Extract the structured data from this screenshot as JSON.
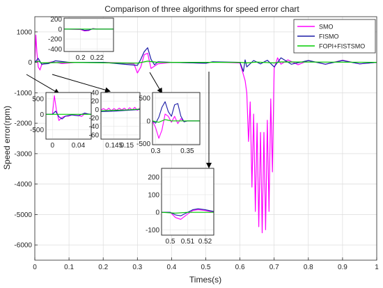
{
  "chart_data": {
    "type": "line",
    "title": "Comparison of three algorithms for speed error chart",
    "xlabel": "Times(s)",
    "ylabel": "Speed error(rpm)",
    "xlim": [
      0,
      1
    ],
    "ylim": [
      -6500,
      1500
    ],
    "xticks": [
      "0",
      "0.1",
      "0.2",
      "0.3",
      "0.4",
      "0.5",
      "0.6",
      "0.7",
      "0.8",
      "0.9",
      "1"
    ],
    "yticks": [
      "1000",
      "0",
      "-1000",
      "-2000",
      "-3000",
      "-4000",
      "-5000",
      "-6000"
    ],
    "grid": true,
    "legend_position": "top-right",
    "series": [
      {
        "name": "SMO",
        "color": "#ff00ff",
        "points": [
          [
            0,
            0
          ],
          [
            0.003,
            900
          ],
          [
            0.006,
            350
          ],
          [
            0.01,
            -150
          ],
          [
            0.015,
            -250
          ],
          [
            0.02,
            -80
          ],
          [
            0.03,
            -30
          ],
          [
            0.05,
            20
          ],
          [
            0.08,
            -40
          ],
          [
            0.12,
            0
          ],
          [
            0.2,
            0
          ],
          [
            0.25,
            -20
          ],
          [
            0.29,
            -50
          ],
          [
            0.3,
            -350
          ],
          [
            0.31,
            -150
          ],
          [
            0.32,
            250
          ],
          [
            0.33,
            300
          ],
          [
            0.34,
            -200
          ],
          [
            0.36,
            -50
          ],
          [
            0.4,
            0
          ],
          [
            0.5,
            -30
          ],
          [
            0.52,
            15
          ],
          [
            0.6,
            -20
          ],
          [
            0.615,
            -600
          ],
          [
            0.62,
            -1000
          ],
          [
            0.625,
            -2600
          ],
          [
            0.63,
            -1300
          ],
          [
            0.635,
            -4100
          ],
          [
            0.64,
            -1700
          ],
          [
            0.645,
            -4900
          ],
          [
            0.65,
            -2000
          ],
          [
            0.655,
            -5400
          ],
          [
            0.66,
            -2300
          ],
          [
            0.665,
            -5600
          ],
          [
            0.67,
            -2300
          ],
          [
            0.675,
            -5500
          ],
          [
            0.68,
            -1900
          ],
          [
            0.685,
            -4900
          ],
          [
            0.69,
            -1200
          ],
          [
            0.695,
            -3600
          ],
          [
            0.7,
            -200
          ],
          [
            0.71,
            150
          ],
          [
            0.72,
            -60
          ],
          [
            0.74,
            80
          ],
          [
            0.77,
            -80
          ],
          [
            0.8,
            60
          ],
          [
            0.85,
            -60
          ],
          [
            0.9,
            70
          ],
          [
            0.95,
            -50
          ],
          [
            1,
            0
          ]
        ]
      },
      {
        "name": "FISMO",
        "color": "#1a1aa6",
        "points": [
          [
            0,
            0
          ],
          [
            0.01,
            130
          ],
          [
            0.02,
            -60
          ],
          [
            0.04,
            -40
          ],
          [
            0.06,
            50
          ],
          [
            0.1,
            0
          ],
          [
            0.2,
            0
          ],
          [
            0.3,
            -100
          ],
          [
            0.31,
            100
          ],
          [
            0.32,
            350
          ],
          [
            0.33,
            480
          ],
          [
            0.34,
            100
          ],
          [
            0.35,
            -80
          ],
          [
            0.36,
            20
          ],
          [
            0.4,
            0
          ],
          [
            0.5,
            -30
          ],
          [
            0.52,
            20
          ],
          [
            0.6,
            0
          ],
          [
            0.61,
            -300
          ],
          [
            0.615,
            80
          ],
          [
            0.62,
            -150
          ],
          [
            0.64,
            60
          ],
          [
            0.66,
            -50
          ],
          [
            0.68,
            70
          ],
          [
            0.7,
            -150
          ],
          [
            0.72,
            150
          ],
          [
            0.75,
            -60
          ],
          [
            0.8,
            60
          ],
          [
            0.85,
            -60
          ],
          [
            0.9,
            60
          ],
          [
            0.95,
            -50
          ],
          [
            1,
            0
          ]
        ]
      },
      {
        "name": "FOPI+FISTSMO",
        "color": "#00cc00",
        "points": [
          [
            0,
            0
          ],
          [
            0.01,
            40
          ],
          [
            0.02,
            -20
          ],
          [
            0.1,
            0
          ],
          [
            0.3,
            -30
          ],
          [
            0.33,
            40
          ],
          [
            0.36,
            0
          ],
          [
            0.6,
            0
          ],
          [
            0.62,
            -20
          ],
          [
            0.65,
            10
          ],
          [
            0.7,
            -20
          ],
          [
            0.72,
            15
          ],
          [
            1,
            0
          ]
        ]
      }
    ],
    "insets": [
      {
        "id": "inset-1",
        "xlim": [
          0.18,
          0.24
        ],
        "ylim": [
          -450,
          220
        ],
        "xticks": [
          "0.2",
          "0.22"
        ],
        "yticks": [
          "200",
          "0",
          "-200",
          "-400"
        ],
        "series": [
          {
            "name": "SMO",
            "points": [
              [
                0.18,
                0
              ],
              [
                0.2,
                -10
              ],
              [
                0.205,
                -40
              ],
              [
                0.21,
                -30
              ],
              [
                0.215,
                10
              ],
              [
                0.22,
                0
              ],
              [
                0.24,
                0
              ]
            ]
          },
          {
            "name": "FISMO",
            "points": [
              [
                0.18,
                0
              ],
              [
                0.2,
                0
              ],
              [
                0.205,
                -25
              ],
              [
                0.21,
                -20
              ],
              [
                0.215,
                5
              ],
              [
                0.22,
                0
              ],
              [
                0.24,
                0
              ]
            ]
          },
          {
            "name": "FOPI+FISTSMO",
            "points": [
              [
                0.18,
                0
              ],
              [
                0.24,
                0
              ]
            ]
          }
        ]
      },
      {
        "id": "inset-2",
        "xlim": [
          -0.01,
          0.06
        ],
        "ylim": [
          -800,
          700
        ],
        "xticks": [
          "0",
          "0.04"
        ],
        "yticks": [
          "500",
          "0",
          "-500"
        ],
        "series": [
          {
            "name": "SMO",
            "points": [
              [
                -0.01,
                0
              ],
              [
                0,
                0
              ],
              [
                0.003,
                600
              ],
              [
                0.006,
                150
              ],
              [
                0.01,
                -200
              ],
              [
                0.015,
                -100
              ],
              [
                0.02,
                -60
              ],
              [
                0.025,
                -60
              ],
              [
                0.03,
                -20
              ],
              [
                0.04,
                -40
              ],
              [
                0.045,
                -70
              ],
              [
                0.05,
                20
              ],
              [
                0.055,
                10
              ],
              [
                0.06,
                -10
              ]
            ]
          },
          {
            "name": "FISMO",
            "points": [
              [
                -0.01,
                0
              ],
              [
                0,
                0
              ],
              [
                0.005,
                100
              ],
              [
                0.01,
                -80
              ],
              [
                0.015,
                -150
              ],
              [
                0.02,
                -60
              ],
              [
                0.03,
                -20
              ],
              [
                0.04,
                -50
              ],
              [
                0.05,
                40
              ],
              [
                0.055,
                10
              ],
              [
                0.06,
                0
              ]
            ]
          },
          {
            "name": "FOPI+FISTSMO",
            "points": [
              [
                -0.01,
                0
              ],
              [
                0.06,
                0
              ]
            ]
          }
        ]
      },
      {
        "id": "inset-3",
        "xlim": [
          0.14,
          0.155
        ],
        "ylim": [
          -70,
          40
        ],
        "xticks": [
          "0.145",
          "0.15"
        ],
        "yticks": [
          "40",
          "20",
          "0",
          "-20",
          "-40",
          "-60"
        ],
        "series": [
          {
            "name": "SMO",
            "points": [
              [
                0.14,
                -1
              ],
              [
                0.141,
                2
              ],
              [
                0.142,
                -2
              ],
              [
                0.143,
                3
              ],
              [
                0.144,
                -3
              ],
              [
                0.145,
                2
              ],
              [
                0.146,
                -2
              ],
              [
                0.147,
                3
              ],
              [
                0.148,
                -1
              ],
              [
                0.149,
                3
              ],
              [
                0.15,
                -2
              ],
              [
                0.151,
                4
              ],
              [
                0.152,
                -1
              ],
              [
                0.153,
                5
              ],
              [
                0.154,
                -2
              ],
              [
                0.155,
                4
              ]
            ]
          },
          {
            "name": "FISMO",
            "points": [
              [
                0.14,
                -5
              ],
              [
                0.145,
                -4
              ],
              [
                0.15,
                -2
              ],
              [
                0.155,
                0
              ]
            ]
          },
          {
            "name": "FOPI+FISTSMO",
            "points": [
              [
                0.14,
                -3
              ],
              [
                0.145,
                -2
              ],
              [
                0.15,
                -1
              ],
              [
                0.155,
                1
              ]
            ]
          }
        ]
      },
      {
        "id": "inset-4",
        "xlim": [
          0.295,
          0.37
        ],
        "ylim": [
          -520,
          620
        ],
        "xticks": [
          "0.3",
          "0.35"
        ],
        "yticks": [
          "500",
          "0",
          "-500"
        ],
        "series": [
          {
            "name": "SMO",
            "points": [
              [
                0.295,
                0
              ],
              [
                0.3,
                -150
              ],
              [
                0.305,
                -380
              ],
              [
                0.31,
                -200
              ],
              [
                0.315,
                150
              ],
              [
                0.32,
                100
              ],
              [
                0.325,
                -30
              ],
              [
                0.33,
                100
              ],
              [
                0.335,
                -60
              ],
              [
                0.34,
                50
              ],
              [
                0.345,
                -20
              ],
              [
                0.35,
                0
              ],
              [
                0.37,
                0
              ]
            ]
          },
          {
            "name": "FISMO",
            "points": [
              [
                0.295,
                0
              ],
              [
                0.3,
                -50
              ],
              [
                0.305,
                80
              ],
              [
                0.31,
                300
              ],
              [
                0.315,
                420
              ],
              [
                0.32,
                200
              ],
              [
                0.325,
                100
              ],
              [
                0.33,
                350
              ],
              [
                0.335,
                380
              ],
              [
                0.34,
                100
              ],
              [
                0.345,
                -20
              ],
              [
                0.35,
                0
              ],
              [
                0.37,
                0
              ]
            ]
          },
          {
            "name": "FOPI+FISTSMO",
            "points": [
              [
                0.295,
                0
              ],
              [
                0.305,
                -30
              ],
              [
                0.315,
                30
              ],
              [
                0.325,
                0
              ],
              [
                0.37,
                0
              ]
            ]
          }
        ]
      },
      {
        "id": "inset-5",
        "xlim": [
          0.495,
          0.525
        ],
        "ylim": [
          -130,
          250
        ],
        "xticks": [
          "0.5",
          "0.51",
          "0.52"
        ],
        "yticks": [
          "200",
          "100",
          "0",
          "-100"
        ],
        "series": [
          {
            "name": "SMO",
            "points": [
              [
                0.495,
                0
              ],
              [
                0.5,
                0
              ],
              [
                0.503,
                -30
              ],
              [
                0.506,
                -40
              ],
              [
                0.51,
                -10
              ],
              [
                0.513,
                10
              ],
              [
                0.516,
                15
              ],
              [
                0.52,
                10
              ],
              [
                0.525,
                0
              ]
            ]
          },
          {
            "name": "FISMO",
            "points": [
              [
                0.495,
                0
              ],
              [
                0.5,
                0
              ],
              [
                0.503,
                -15
              ],
              [
                0.506,
                -20
              ],
              [
                0.51,
                0
              ],
              [
                0.513,
                15
              ],
              [
                0.516,
                20
              ],
              [
                0.52,
                15
              ],
              [
                0.525,
                5
              ]
            ]
          },
          {
            "name": "FOPI+FISTSMO",
            "points": [
              [
                0.495,
                0
              ],
              [
                0.503,
                -5
              ],
              [
                0.51,
                0
              ],
              [
                0.525,
                0
              ]
            ]
          }
        ]
      }
    ]
  }
}
